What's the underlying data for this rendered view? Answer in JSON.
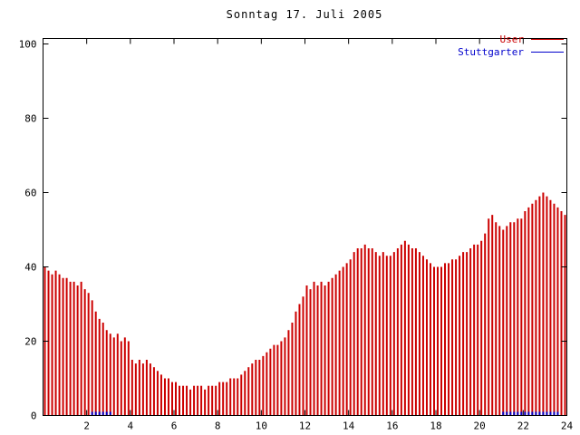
{
  "title": "Sonntag 17. Juli 2005",
  "chart_data": {
    "type": "bar",
    "subtype": "impulses",
    "title": "Sonntag 17. Juli 2005",
    "xlabel": "",
    "ylabel": "",
    "xlim": [
      0,
      24
    ],
    "ylim": [
      0,
      100
    ],
    "x_ticks": [
      2,
      4,
      6,
      8,
      10,
      12,
      14,
      16,
      18,
      20,
      22,
      24
    ],
    "y_ticks": [
      0,
      20,
      40,
      60,
      80,
      100
    ],
    "interval_minutes": 10,
    "grid": false,
    "legend_position": "top-right",
    "colors": {
      "axis": "#000000",
      "background": "#ffffff",
      "user": "#cc0000",
      "stuttgarter": "#0000cc"
    },
    "series": [
      {
        "name": "User",
        "color": "#cc0000",
        "values": [
          40,
          39,
          38,
          39,
          38,
          37,
          37,
          36,
          36,
          35,
          36,
          34,
          33,
          31,
          28,
          26,
          25,
          23,
          22,
          21,
          22,
          20,
          21,
          20,
          15,
          14,
          15,
          14,
          15,
          14,
          13,
          12,
          11,
          10,
          10,
          9,
          9,
          8,
          8,
          8,
          7,
          8,
          8,
          8,
          7,
          8,
          8,
          8,
          9,
          9,
          9,
          10,
          10,
          10,
          11,
          12,
          13,
          14,
          15,
          15,
          16,
          17,
          18,
          19,
          19,
          20,
          21,
          23,
          25,
          28,
          30,
          32,
          35,
          34,
          36,
          35,
          36,
          35,
          36,
          37,
          38,
          39,
          40,
          41,
          42,
          44,
          45,
          45,
          46,
          45,
          45,
          44,
          43,
          44,
          43,
          43,
          44,
          45,
          46,
          47,
          46,
          45,
          45,
          44,
          43,
          42,
          41,
          40,
          40,
          40,
          41,
          41,
          42,
          42,
          43,
          44,
          44,
          45,
          46,
          46,
          47,
          49,
          53,
          54,
          52,
          51,
          50,
          51,
          52,
          52,
          53,
          53,
          55,
          56,
          57,
          58,
          59,
          60,
          59,
          58,
          57,
          56,
          55,
          54
        ]
      },
      {
        "name": "Stuttgarter",
        "color": "#0000cc",
        "values": [
          0,
          0,
          0,
          0,
          0,
          0,
          0,
          0,
          0,
          0,
          0,
          0,
          0,
          1,
          1,
          1,
          1,
          1,
          1,
          0,
          0,
          0,
          0,
          0,
          0,
          0,
          0,
          0,
          0,
          0,
          0,
          0,
          0,
          0,
          0,
          0,
          0,
          0,
          0,
          0,
          0,
          0,
          0,
          0,
          0,
          0,
          0,
          0,
          0,
          0,
          0,
          0,
          0,
          0,
          0,
          0,
          0,
          0,
          0,
          0,
          0,
          0,
          0,
          0,
          0,
          0,
          0,
          0,
          0,
          0,
          0,
          0,
          0,
          0,
          0,
          0,
          0,
          0,
          0,
          0,
          0,
          0,
          0,
          0,
          0,
          0,
          0,
          0,
          0,
          0,
          0,
          0,
          0,
          0,
          0,
          0,
          0,
          0,
          0,
          0,
          0,
          0,
          0,
          0,
          0,
          0,
          0,
          0,
          0,
          0,
          0,
          0,
          0,
          0,
          0,
          0,
          0,
          0,
          0,
          0,
          0,
          0,
          0,
          0,
          0,
          0,
          1,
          1,
          1,
          1,
          1,
          1,
          1,
          1,
          1,
          1,
          1,
          1,
          1,
          1,
          1,
          1,
          0,
          0
        ]
      }
    ]
  }
}
